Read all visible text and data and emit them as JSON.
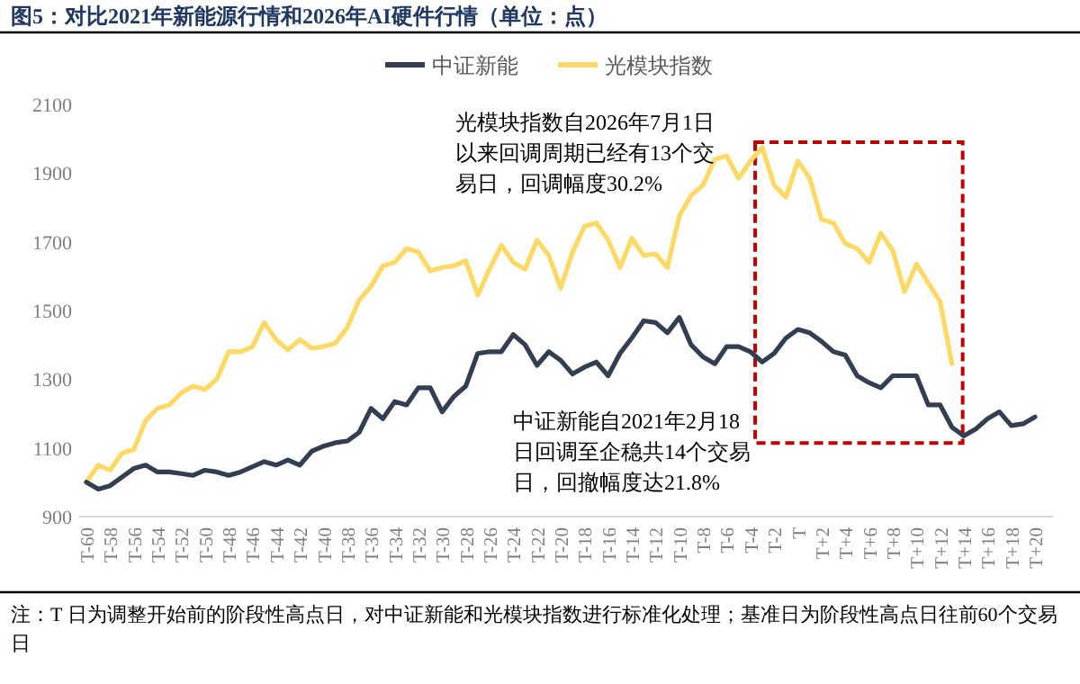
{
  "chart_data": {
    "type": "line",
    "title": "图5：对比2021年新能源行情和2026年AI硬件行情（单位：点）",
    "categories": [
      "T-60",
      null,
      "T-58",
      null,
      "T-56",
      null,
      "T-54",
      null,
      "T-52",
      null,
      "T-50",
      null,
      "T-48",
      null,
      "T-46",
      null,
      "T-44",
      null,
      "T-42",
      null,
      "T-40",
      null,
      "T-38",
      null,
      "T-36",
      null,
      "T-34",
      null,
      "T-32",
      null,
      "T-30",
      null,
      "T-28",
      null,
      "T-26",
      null,
      "T-24",
      null,
      "T-22",
      null,
      "T-20",
      null,
      "T-18",
      null,
      "T-16",
      null,
      "T-14",
      null,
      "T-12",
      null,
      "T-10",
      null,
      "T-8",
      null,
      "T-6",
      null,
      "T-4",
      null,
      "T-2",
      null,
      "T",
      null,
      "T+2",
      null,
      "T+4",
      null,
      "T+6",
      null,
      "T+8",
      null,
      "T+10",
      null,
      "T+12",
      null,
      "T+14",
      null,
      "T+16",
      null,
      "T+18",
      null,
      "T+20"
    ],
    "series": [
      {
        "name": "中证新能",
        "color": "#333f50",
        "values": [
          1000,
          980,
          990,
          1015,
          1040,
          1050,
          1030,
          1030,
          1025,
          1020,
          1035,
          1030,
          1020,
          1030,
          1045,
          1060,
          1050,
          1065,
          1050,
          1090,
          1105,
          1115,
          1120,
          1145,
          1215,
          1185,
          1235,
          1225,
          1275,
          1275,
          1205,
          1250,
          1280,
          1375,
          1380,
          1380,
          1430,
          1400,
          1340,
          1380,
          1355,
          1315,
          1335,
          1350,
          1310,
          1375,
          1420,
          1470,
          1465,
          1435,
          1480,
          1400,
          1365,
          1345,
          1395,
          1395,
          1380,
          1350,
          1375,
          1420,
          1445,
          1435,
          1410,
          1380,
          1370,
          1310,
          1290,
          1275,
          1310,
          1310,
          1310,
          1225,
          1225,
          1160,
          1135,
          1155,
          1185,
          1205,
          1165,
          1170,
          1190
        ]
      },
      {
        "name": "光模块指数",
        "color": "#ffd966",
        "values": [
          1000,
          1050,
          1035,
          1085,
          1095,
          1180,
          1215,
          1225,
          1260,
          1280,
          1270,
          1300,
          1380,
          1380,
          1395,
          1465,
          1415,
          1385,
          1415,
          1390,
          1395,
          1405,
          1450,
          1530,
          1570,
          1630,
          1640,
          1680,
          1670,
          1615,
          1625,
          1630,
          1645,
          1545,
          1620,
          1690,
          1640,
          1620,
          1705,
          1660,
          1565,
          1670,
          1745,
          1755,
          1705,
          1625,
          1710,
          1660,
          1665,
          1625,
          1775,
          1835,
          1865,
          1940,
          1950,
          1885,
          1935,
          1975,
          1865,
          1830,
          1935,
          1885,
          1765,
          1755,
          1695,
          1680,
          1640,
          1725,
          1675,
          1555,
          1635,
          1580,
          1525,
          1345,
          null,
          null,
          null,
          null,
          null,
          null,
          null
        ]
      }
    ],
    "ylim": [
      900,
      2100
    ],
    "yticks": [
      900,
      1100,
      1300,
      1500,
      1700,
      1900,
      2100
    ],
    "legend": "top",
    "grid": false,
    "annotations": [
      "光模块指数自2026年7月1日以来回调周期已经有13个交易日，回调幅度30.2%",
      "中证新能自2021年2月18日回调至企稳共14个交易日，回撤幅度达21.8%",
      "注：T 日为调整开始前的阶段性高点日，对中证新能和光模块指数进行标准化处理；基准日为阶段性高点日往前60个交易日"
    ]
  }
}
